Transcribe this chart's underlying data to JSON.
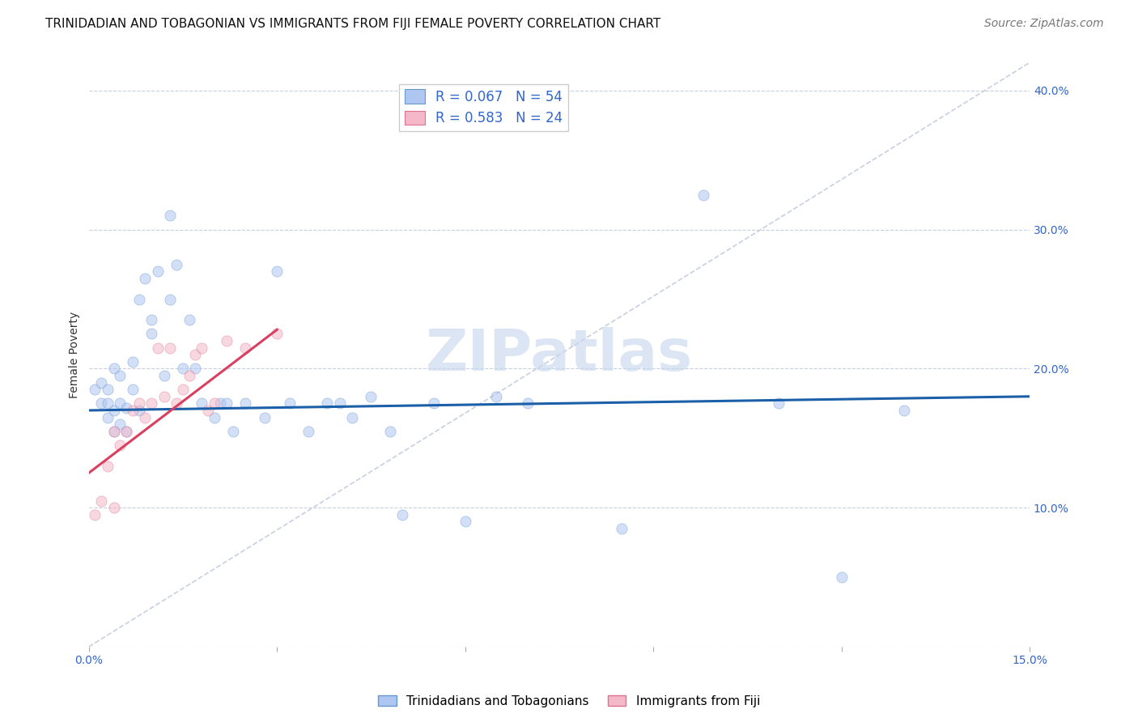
{
  "title": "TRINIDADIAN AND TOBAGONIAN VS IMMIGRANTS FROM FIJI FEMALE POVERTY CORRELATION CHART",
  "source_text": "Source: ZipAtlas.com",
  "ylabel": "Female Poverty",
  "xlim": [
    0,
    0.15
  ],
  "ylim": [
    0,
    0.42
  ],
  "xticks": [
    0.0,
    0.03,
    0.06,
    0.09,
    0.12,
    0.15
  ],
  "yticks": [
    0.0,
    0.1,
    0.2,
    0.3,
    0.4
  ],
  "legend1_label": "R = 0.067   N = 54",
  "legend2_label": "R = 0.583   N = 24",
  "legend1_color": "#aec6f0",
  "legend2_color": "#f4b8c8",
  "trend1_color": "#1a5fa8",
  "trend2_color": "#d94060",
  "scatter1_color": "#aec6f0",
  "scatter2_color": "#f4b8c8",
  "scatter1_edge": "#6699cc",
  "scatter2_edge": "#e07090",
  "watermark": "ZIPatlas",
  "watermark_color": "#c8d8ee",
  "blue_scatter_x": [
    0.001,
    0.002,
    0.002,
    0.003,
    0.003,
    0.003,
    0.004,
    0.004,
    0.004,
    0.005,
    0.005,
    0.005,
    0.006,
    0.006,
    0.007,
    0.007,
    0.008,
    0.008,
    0.009,
    0.01,
    0.01,
    0.011,
    0.012,
    0.013,
    0.013,
    0.014,
    0.015,
    0.016,
    0.017,
    0.018,
    0.02,
    0.021,
    0.022,
    0.023,
    0.025,
    0.028,
    0.03,
    0.032,
    0.035,
    0.038,
    0.04,
    0.042,
    0.045,
    0.048,
    0.05,
    0.055,
    0.06,
    0.065,
    0.07,
    0.098,
    0.11,
    0.12,
    0.13,
    0.085
  ],
  "blue_scatter_y": [
    0.185,
    0.175,
    0.19,
    0.165,
    0.175,
    0.185,
    0.155,
    0.17,
    0.2,
    0.16,
    0.175,
    0.195,
    0.155,
    0.172,
    0.185,
    0.205,
    0.17,
    0.25,
    0.265,
    0.225,
    0.235,
    0.27,
    0.195,
    0.31,
    0.25,
    0.275,
    0.2,
    0.235,
    0.2,
    0.175,
    0.165,
    0.175,
    0.175,
    0.155,
    0.175,
    0.165,
    0.27,
    0.175,
    0.155,
    0.175,
    0.175,
    0.165,
    0.18,
    0.155,
    0.095,
    0.175,
    0.09,
    0.18,
    0.175,
    0.325,
    0.175,
    0.05,
    0.17,
    0.085
  ],
  "pink_scatter_x": [
    0.001,
    0.002,
    0.003,
    0.004,
    0.004,
    0.005,
    0.006,
    0.007,
    0.008,
    0.009,
    0.01,
    0.011,
    0.012,
    0.013,
    0.014,
    0.015,
    0.016,
    0.017,
    0.018,
    0.019,
    0.02,
    0.022,
    0.025,
    0.03
  ],
  "pink_scatter_y": [
    0.095,
    0.105,
    0.13,
    0.1,
    0.155,
    0.145,
    0.155,
    0.17,
    0.175,
    0.165,
    0.175,
    0.215,
    0.18,
    0.215,
    0.175,
    0.185,
    0.195,
    0.21,
    0.215,
    0.17,
    0.175,
    0.22,
    0.215,
    0.225
  ],
  "blue_trend_x": [
    0.0,
    0.15
  ],
  "blue_trend_y": [
    0.17,
    0.18
  ],
  "pink_trend_x": [
    0.0,
    0.03
  ],
  "pink_trend_y": [
    0.125,
    0.228
  ],
  "ref_line_x": [
    0.0,
    0.15
  ],
  "ref_line_y": [
    0.0,
    0.42
  ],
  "title_fontsize": 11,
  "axis_label_fontsize": 10,
  "tick_fontsize": 10,
  "legend_fontsize": 12,
  "source_fontsize": 10,
  "grid_color": "#c8d0e0",
  "background_color": "#ffffff",
  "scatter_size": 90,
  "scatter_alpha": 0.55
}
